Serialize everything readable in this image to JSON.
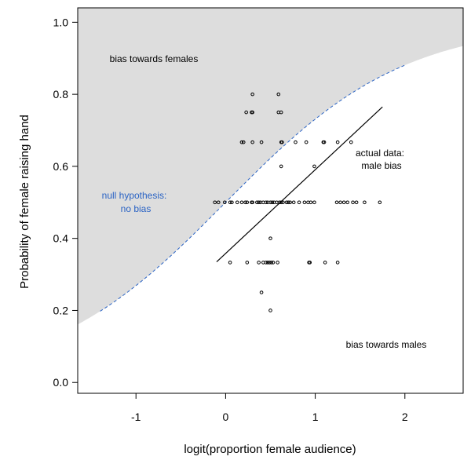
{
  "chart_data": {
    "type": "scatter",
    "xlabel": "logit(proportion female audience)",
    "ylabel": "Probability of female raising hand",
    "xlim": [
      -1.65,
      2.65
    ],
    "ylim": [
      -0.03,
      1.04
    ],
    "x_ticks": [
      -1,
      0,
      1,
      2
    ],
    "y_ticks": [
      0.0,
      0.2,
      0.4,
      0.6,
      0.8,
      1.0
    ],
    "x_tick_labels": [
      "-1",
      "0",
      "1",
      "2"
    ],
    "y_tick_labels": [
      "0.0",
      "0.2",
      "0.4",
      "0.6",
      "0.8",
      "1.0"
    ],
    "grid": false,
    "shading": {
      "region": "above null hypothesis curve",
      "color": "#dddddd"
    },
    "null_curve": {
      "function": "inverse_logit",
      "x_range": [
        -1.4,
        2.0
      ],
      "color": "#2a63c4",
      "style": "dashed"
    },
    "fitted_line": {
      "x": [
        -0.1,
        1.75
      ],
      "y": [
        0.335,
        0.765
      ],
      "color": "#000000"
    },
    "annotations": {
      "bias_females": "bias towards females",
      "bias_males": "bias towards males",
      "null_line1": "null hypothesis:",
      "null_line2": "no bias",
      "actual_line1": "actual data:",
      "actual_line2": "male bias"
    },
    "points": [
      [
        0.3,
        0.8
      ],
      [
        0.59,
        0.8
      ],
      [
        0.23,
        0.75
      ],
      [
        0.29,
        0.75
      ],
      [
        0.3,
        0.75
      ],
      [
        0.59,
        0.75
      ],
      [
        0.62,
        0.75
      ],
      [
        0.18,
        0.667
      ],
      [
        0.2,
        0.667
      ],
      [
        0.3,
        0.667
      ],
      [
        0.4,
        0.667
      ],
      [
        0.62,
        0.667
      ],
      [
        0.63,
        0.667
      ],
      [
        0.78,
        0.667
      ],
      [
        0.9,
        0.667
      ],
      [
        1.09,
        0.667
      ],
      [
        1.1,
        0.667
      ],
      [
        1.25,
        0.667
      ],
      [
        1.4,
        0.667
      ],
      [
        0.62,
        0.6
      ],
      [
        0.99,
        0.6
      ],
      [
        -0.12,
        0.5
      ],
      [
        -0.08,
        0.5
      ],
      [
        -0.01,
        0.5
      ],
      [
        0.05,
        0.5
      ],
      [
        0.07,
        0.5
      ],
      [
        0.13,
        0.5
      ],
      [
        0.18,
        0.5
      ],
      [
        0.22,
        0.5
      ],
      [
        0.24,
        0.5
      ],
      [
        0.29,
        0.5
      ],
      [
        0.3,
        0.5
      ],
      [
        0.35,
        0.5
      ],
      [
        0.37,
        0.5
      ],
      [
        0.39,
        0.5
      ],
      [
        0.42,
        0.5
      ],
      [
        0.45,
        0.5
      ],
      [
        0.47,
        0.5
      ],
      [
        0.5,
        0.5
      ],
      [
        0.52,
        0.5
      ],
      [
        0.54,
        0.5
      ],
      [
        0.57,
        0.5
      ],
      [
        0.6,
        0.5
      ],
      [
        0.62,
        0.5
      ],
      [
        0.64,
        0.5
      ],
      [
        0.68,
        0.5
      ],
      [
        0.7,
        0.5
      ],
      [
        0.72,
        0.5
      ],
      [
        0.76,
        0.5
      ],
      [
        0.82,
        0.5
      ],
      [
        0.88,
        0.5
      ],
      [
        0.92,
        0.5
      ],
      [
        0.95,
        0.5
      ],
      [
        0.99,
        0.5
      ],
      [
        1.24,
        0.5
      ],
      [
        1.28,
        0.5
      ],
      [
        1.32,
        0.5
      ],
      [
        1.36,
        0.5
      ],
      [
        1.42,
        0.5
      ],
      [
        1.46,
        0.5
      ],
      [
        1.55,
        0.5
      ],
      [
        1.72,
        0.5
      ],
      [
        0.5,
        0.4
      ],
      [
        0.05,
        0.333
      ],
      [
        0.24,
        0.333
      ],
      [
        0.37,
        0.333
      ],
      [
        0.42,
        0.333
      ],
      [
        0.45,
        0.333
      ],
      [
        0.47,
        0.333
      ],
      [
        0.49,
        0.333
      ],
      [
        0.51,
        0.333
      ],
      [
        0.53,
        0.333
      ],
      [
        0.58,
        0.333
      ],
      [
        0.93,
        0.333
      ],
      [
        0.94,
        0.333
      ],
      [
        1.11,
        0.333
      ],
      [
        1.25,
        0.333
      ],
      [
        0.4,
        0.25
      ],
      [
        0.5,
        0.2
      ]
    ]
  }
}
